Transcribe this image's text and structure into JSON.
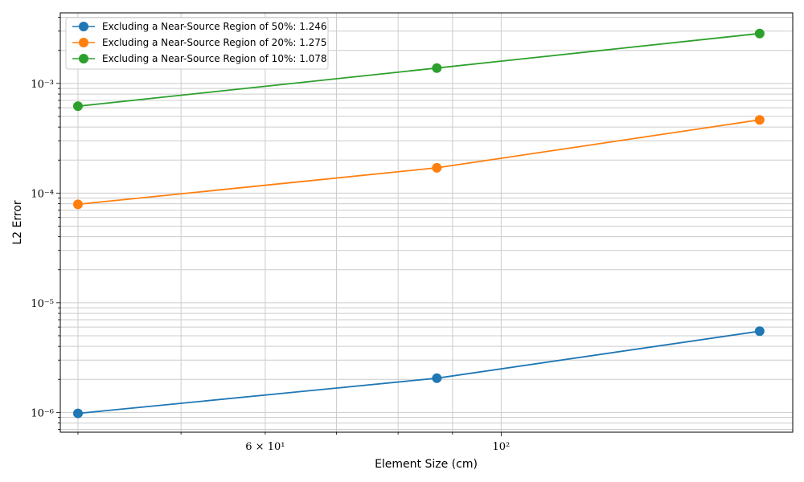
{
  "chart_data": {
    "type": "line",
    "xscale": "log",
    "yscale": "log",
    "xlabel": "Element Size (cm)",
    "ylabel": "L2 Error",
    "xlim": [
      38.5,
      188
    ],
    "ylim": [
      6.6e-07,
      0.0044
    ],
    "x_ticks": [
      {
        "value": 60,
        "label": "6 × 10¹"
      },
      {
        "value": 100,
        "label": "10²"
      }
    ],
    "y_ticks": [
      {
        "value": 1e-06,
        "label": "10⁻⁶"
      },
      {
        "value": 1e-05,
        "label": "10⁻⁵"
      },
      {
        "value": 0.0001,
        "label": "10⁻⁴"
      },
      {
        "value": 0.001,
        "label": "10⁻³"
      }
    ],
    "grid": true,
    "legend_position": "top-left",
    "series": [
      {
        "name": "Excluding a Near-Source Region of 50%: 1.246",
        "color": "#1f77b4",
        "x": [
          40,
          87,
          175
        ],
        "y": [
          9.8e-07,
          2.05e-06,
          5.5e-06
        ]
      },
      {
        "name": "Excluding a Near-Source Region of 20%: 1.275",
        "color": "#ff7f0e",
        "x": [
          40,
          87,
          175
        ],
        "y": [
          7.9e-05,
          0.00017,
          0.000465
        ]
      },
      {
        "name": "Excluding a Near-Source Region of 10%: 1.078",
        "color": "#2ca02c",
        "x": [
          40,
          87,
          175
        ],
        "y": [
          0.00062,
          0.00138,
          0.00285
        ]
      }
    ]
  }
}
